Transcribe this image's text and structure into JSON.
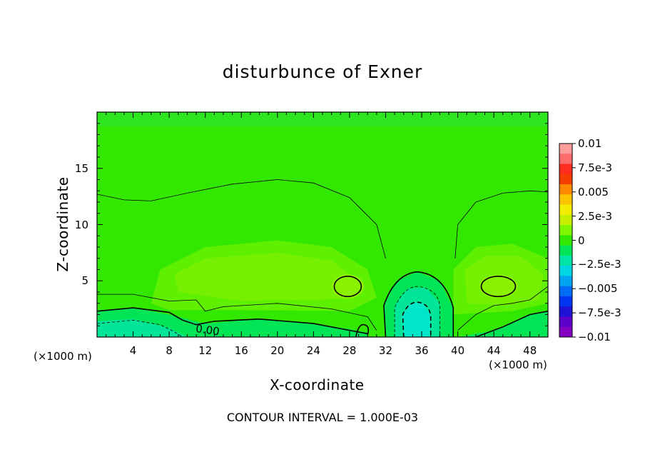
{
  "chart_data": {
    "type": "heatmap",
    "title": "disturbunce of Exner",
    "xlabel": "X-coordinate",
    "ylabel": "Z-coordinate",
    "x_unit_label": "(×1000 m)",
    "xlim": [
      0,
      50
    ],
    "ylim": [
      0,
      20
    ],
    "x_ticks": [
      "4",
      "8",
      "12",
      "16",
      "20",
      "24",
      "28",
      "32",
      "36",
      "40",
      "44",
      "48"
    ],
    "y_ticks": [
      "5",
      "10",
      "15"
    ],
    "colorbar": {
      "range": [
        -0.01,
        0.01
      ],
      "labels": [
        "0.01",
        "7.5e-3",
        "0.005",
        "2.5e-3",
        "0",
        "−2.5e-3",
        "−0.005",
        "−7.5e-3",
        "−0.01"
      ],
      "colors": [
        "#ff9c9c",
        "#ff6c6c",
        "#ff2d20",
        "#f53d00",
        "#ff8a00",
        "#ffc400",
        "#f3ee00",
        "#c6f000",
        "#7ff500",
        "#33e800",
        "#00e456",
        "#00e5a6",
        "#00d6e2",
        "#00a4f0",
        "#006cf5",
        "#0036f2",
        "#1e12d6",
        "#5a00c8",
        "#8400c0"
      ]
    },
    "contour_labels": [
      "0.00"
    ],
    "contour_interval_text": "CONTOUR INTERVAL = 1.000E-03"
  }
}
